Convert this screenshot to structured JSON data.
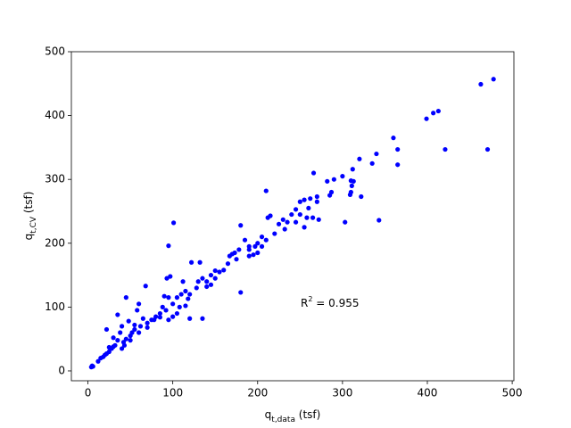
{
  "chart_data": {
    "type": "scatter",
    "xlabel": {
      "base": "q",
      "sub": "t,data",
      "rest": " (tsf)"
    },
    "ylabel": {
      "base": "q",
      "sub": "t,CV",
      "rest": " (tsf)"
    },
    "annotation": {
      "base": "R",
      "sup": "2",
      "rest": " = 0.955"
    },
    "color": "#0000ff",
    "x": [
      478,
      463,
      413,
      407,
      399,
      421,
      471,
      360,
      365,
      365,
      343,
      340,
      335,
      320,
      312,
      310,
      313,
      311,
      322,
      310,
      309,
      303,
      300,
      290,
      282,
      287,
      285,
      270,
      266,
      262,
      270,
      255,
      250,
      245,
      250,
      258,
      265,
      272,
      255,
      240,
      235,
      230,
      225,
      232,
      210,
      212,
      215,
      205,
      210,
      200,
      197,
      205,
      190,
      185,
      195,
      190,
      180,
      178,
      173,
      170,
      175,
      167,
      180,
      160,
      155,
      150,
      145,
      140,
      145,
      135,
      132,
      122,
      130,
      128,
      135,
      120,
      115,
      110,
      112,
      118,
      105,
      100,
      108,
      101,
      95,
      97,
      93,
      90,
      95,
      88,
      92,
      95,
      85,
      80,
      75,
      70,
      68,
      65,
      60,
      58,
      62,
      55,
      52,
      50,
      45,
      48,
      45,
      42,
      40,
      38,
      35,
      35,
      32,
      30,
      28,
      25,
      22,
      22,
      20,
      18,
      15,
      12,
      5,
      6,
      4,
      30,
      40,
      25,
      43,
      50,
      55,
      60,
      70,
      78,
      85,
      100,
      105,
      115,
      120,
      140,
      150,
      165,
      190,
      200,
      220,
      245,
      260
    ],
    "values": [
      457,
      449,
      407,
      404,
      395,
      347,
      347,
      365,
      347,
      323,
      236,
      340,
      325,
      332,
      316,
      298,
      297,
      290,
      273,
      280,
      276,
      233,
      305,
      300,
      297,
      280,
      275,
      273,
      310,
      270,
      265,
      268,
      265,
      253,
      245,
      240,
      240,
      237,
      225,
      245,
      233,
      237,
      230,
      222,
      282,
      240,
      243,
      210,
      205,
      200,
      195,
      195,
      195,
      205,
      182,
      180,
      228,
      190,
      185,
      183,
      175,
      180,
      123,
      158,
      155,
      157,
      150,
      140,
      135,
      145,
      170,
      170,
      140,
      130,
      82,
      120,
      125,
      120,
      140,
      113,
      115,
      105,
      100,
      232,
      196,
      148,
      145,
      117,
      115,
      100,
      95,
      80,
      90,
      85,
      80,
      75,
      133,
      82,
      105,
      95,
      70,
      65,
      60,
      55,
      115,
      78,
      50,
      45,
      70,
      60,
      88,
      48,
      40,
      38,
      35,
      30,
      65,
      27,
      25,
      22,
      20,
      15,
      8,
      7,
      6,
      52,
      35,
      37,
      40,
      48,
      72,
      60,
      68,
      80,
      84,
      85,
      90,
      102,
      82,
      132,
      145,
      168,
      190,
      185,
      215,
      233,
      255
    ],
    "xlim": [
      -19.5,
      502
    ],
    "ylim": [
      -15.4,
      500
    ],
    "xticks": [
      0,
      100,
      200,
      300,
      400,
      500
    ],
    "yticks": [
      0,
      100,
      200,
      300,
      400,
      500
    ],
    "grid": false
  }
}
